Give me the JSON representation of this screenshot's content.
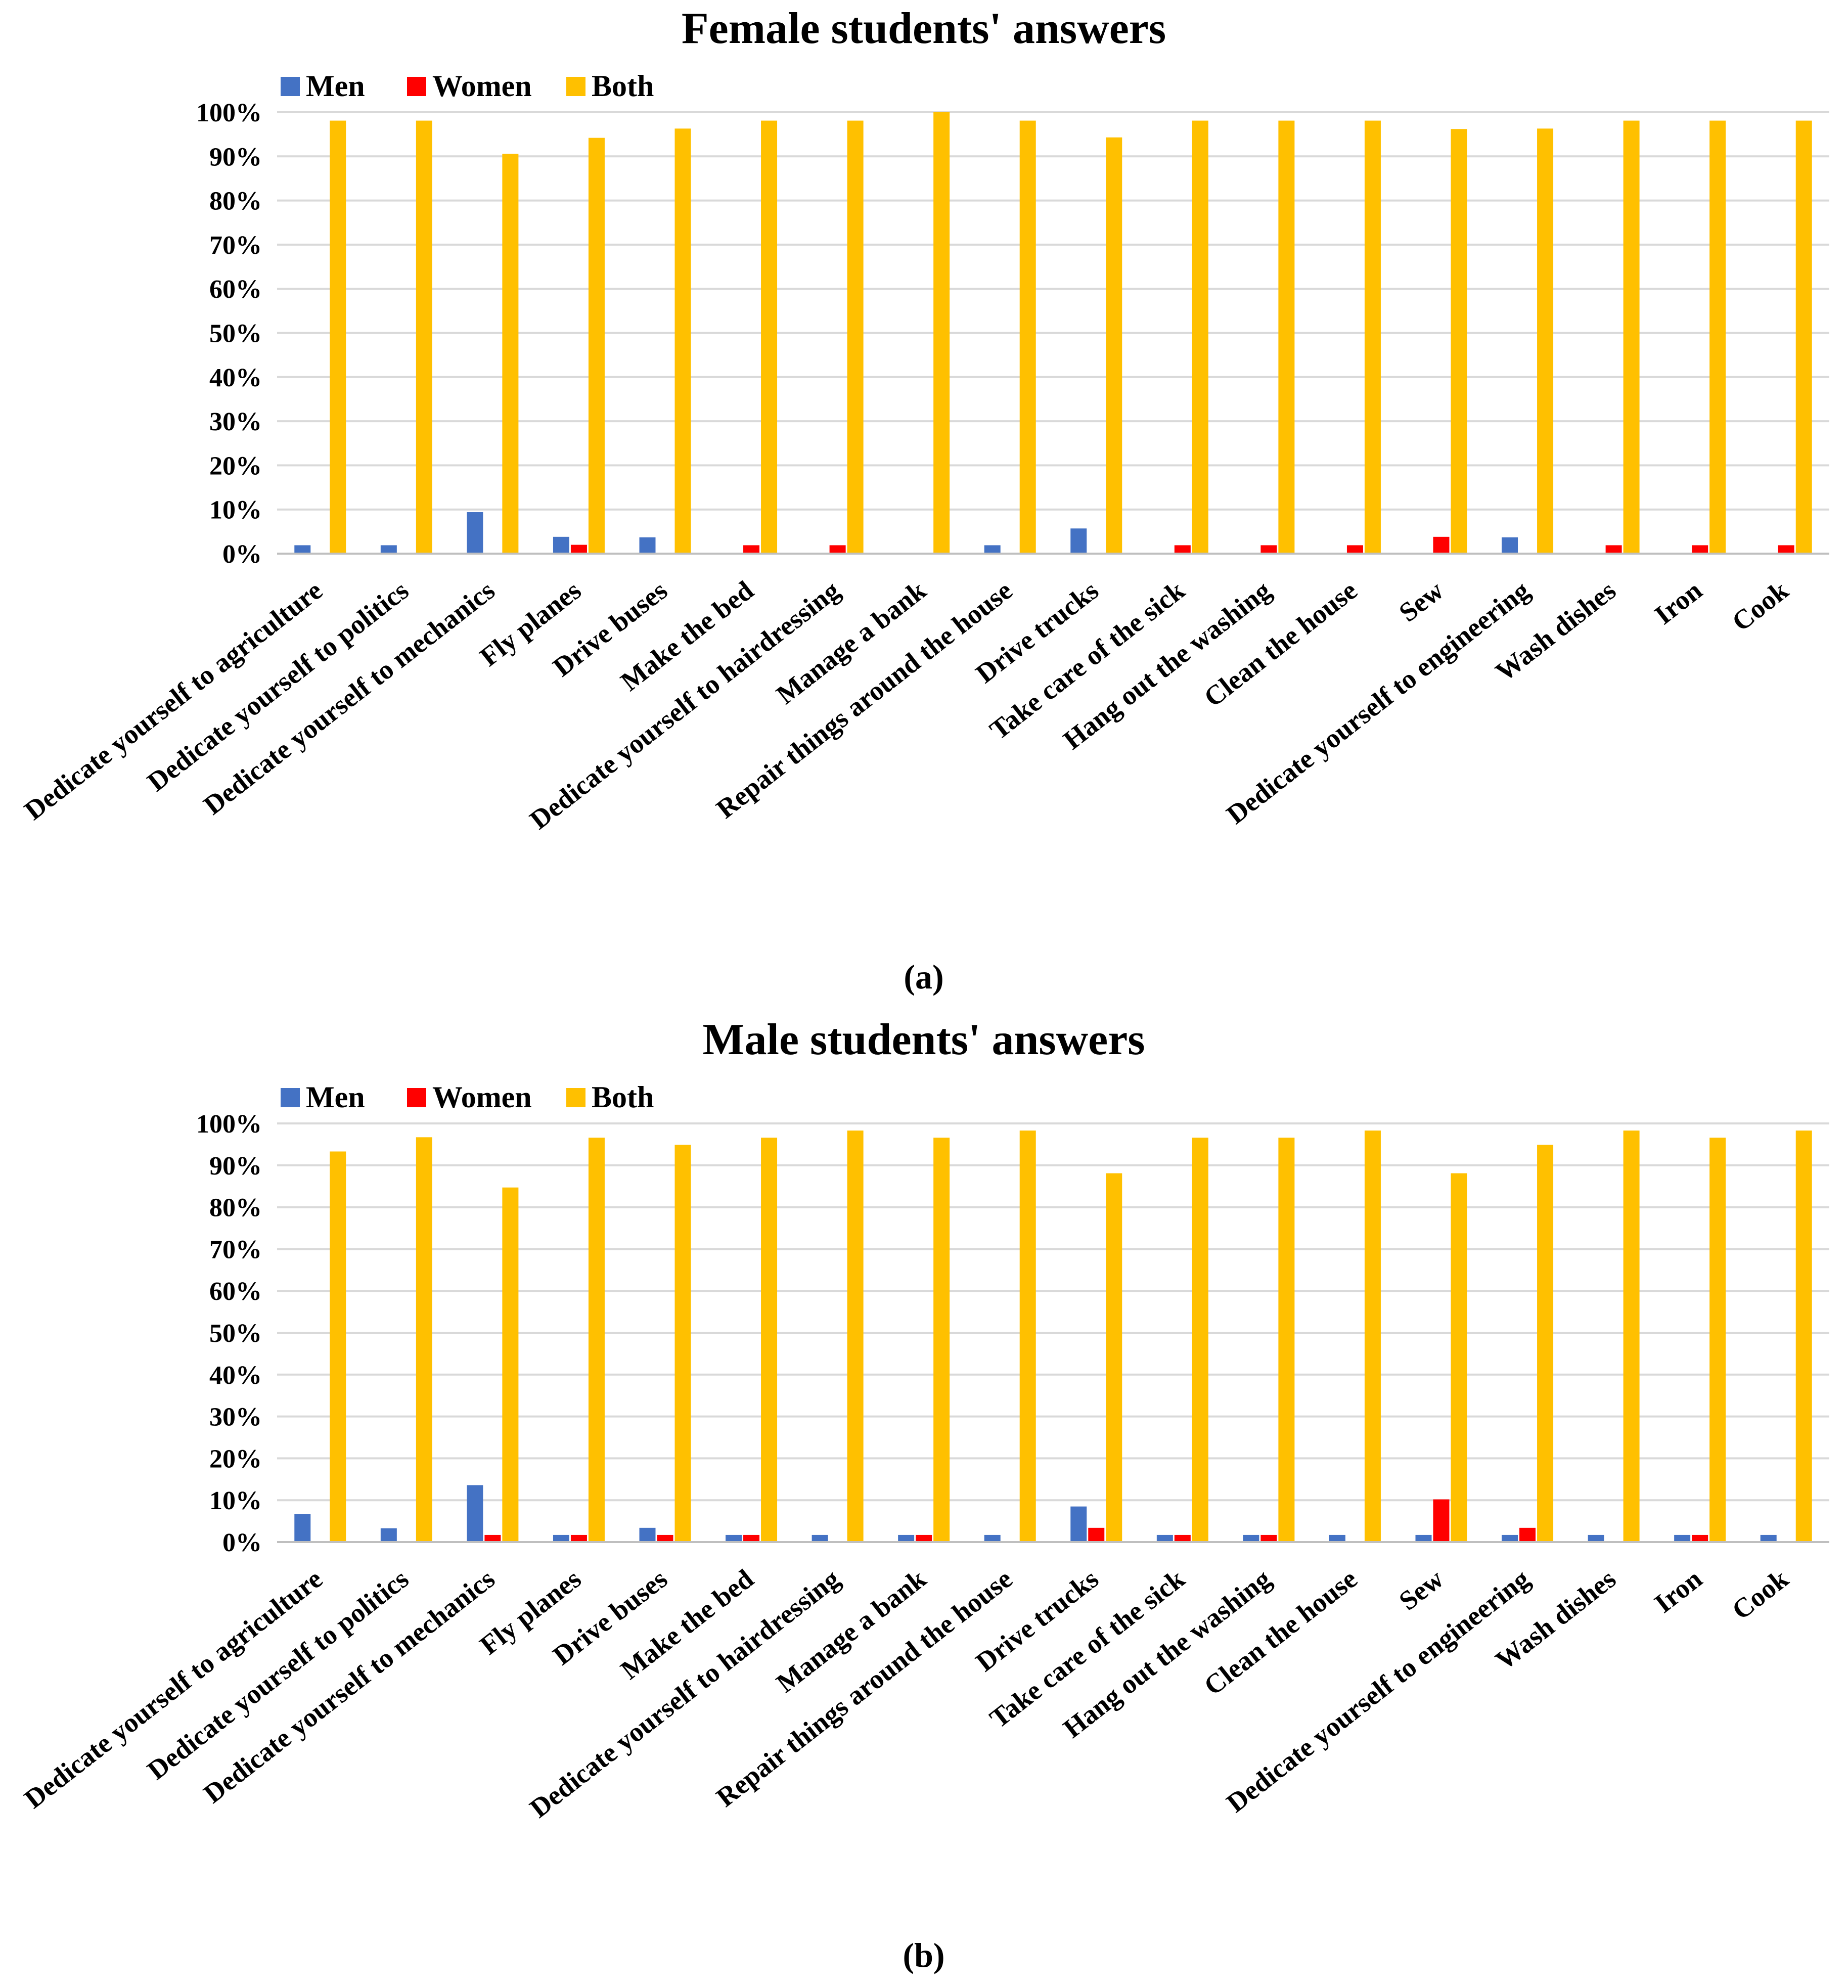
{
  "colors": {
    "men": "#4472C4",
    "women": "#FF0000",
    "both": "#FFC000",
    "grid": "#D9D9D9",
    "axis": "#BFBFBF",
    "text": "#000000"
  },
  "chart_data": [
    {
      "type": "bar",
      "title": "Female students' answers",
      "caption": "(a)",
      "xlabel": "",
      "ylabel": "",
      "ylim": [
        0,
        100
      ],
      "yticks": [
        "0%",
        "10%",
        "20%",
        "30%",
        "40%",
        "50%",
        "60%",
        "70%",
        "80%",
        "90%",
        "100%"
      ],
      "grid": true,
      "legend_position": "top-left",
      "categories": [
        "Dedicate yourself to agriculture",
        "Dedicate yourself to politics",
        "Dedicate yourself to mechanics",
        "Fly planes",
        "Drive buses",
        "Make the bed",
        "Dedicate yourself to hairdressing",
        "Manage a bank",
        "Repair things around the house",
        "Drive trucks",
        "Take care of the sick",
        "Hang out the washing",
        "Clean the house",
        "Sew",
        "Dedicate yourself to engineering",
        "Wash dishes",
        "Iron",
        "Cook"
      ],
      "series": [
        {
          "name": "Men",
          "values": [
            1.9,
            1.9,
            9.4,
            3.8,
            3.7,
            0,
            0,
            0,
            1.9,
            5.7,
            0,
            0,
            0,
            0,
            3.7,
            0,
            0,
            0
          ]
        },
        {
          "name": "Women",
          "values": [
            0,
            0,
            0,
            2.0,
            0,
            1.9,
            1.9,
            0,
            0,
            0,
            1.9,
            1.9,
            1.9,
            3.8,
            0,
            1.9,
            1.9,
            1.9
          ]
        },
        {
          "name": "Both",
          "values": [
            98.1,
            98.1,
            90.6,
            94.2,
            96.3,
            98.1,
            98.1,
            100,
            98.1,
            94.3,
            98.1,
            98.1,
            98.1,
            96.2,
            96.3,
            98.1,
            98.1,
            98.1
          ]
        }
      ]
    },
    {
      "type": "bar",
      "title": "Male students' answers",
      "caption": "(b)",
      "xlabel": "",
      "ylabel": "",
      "ylim": [
        0,
        100
      ],
      "yticks": [
        "0%",
        "10%",
        "20%",
        "30%",
        "40%",
        "50%",
        "60%",
        "70%",
        "80%",
        "90%",
        "100%"
      ],
      "grid": true,
      "legend_position": "top-left",
      "categories": [
        "Dedicate yourself to agriculture",
        "Dedicate yourself to politics",
        "Dedicate yourself to mechanics",
        "Fly planes",
        "Drive buses",
        "Make the bed",
        "Dedicate yourself to hairdressing",
        "Manage a bank",
        "Repair things around the house",
        "Drive trucks",
        "Take care of the sick",
        "Hang out the washing",
        "Clean the house",
        "Sew",
        "Dedicate yourself to engineering",
        "Wash dishes",
        "Iron",
        "Cook"
      ],
      "series": [
        {
          "name": "Men",
          "values": [
            6.7,
            3.3,
            13.6,
            1.7,
            3.4,
            1.7,
            1.7,
            1.7,
            1.7,
            8.5,
            1.7,
            1.7,
            1.7,
            1.7,
            1.7,
            1.7,
            1.7,
            1.7
          ]
        },
        {
          "name": "Women",
          "values": [
            0,
            0,
            1.7,
            1.7,
            1.7,
            1.7,
            0,
            1.7,
            0,
            3.4,
            1.7,
            1.7,
            0,
            10.2,
            3.4,
            0,
            1.7,
            0
          ]
        },
        {
          "name": "Both",
          "values": [
            93.3,
            96.7,
            84.7,
            96.6,
            94.9,
            96.6,
            98.3,
            96.6,
            98.3,
            88.1,
            96.6,
            96.6,
            98.3,
            88.1,
            94.9,
            98.3,
            96.6,
            98.3
          ]
        }
      ]
    }
  ]
}
